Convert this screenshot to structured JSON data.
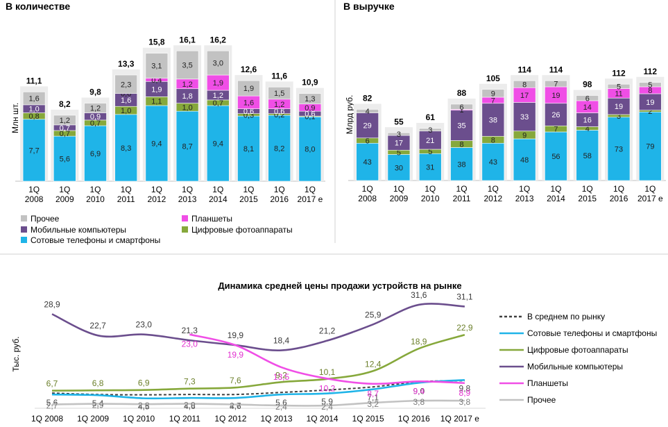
{
  "colors": {
    "phones": "#1fb4e8",
    "cameras": "#86a83b",
    "mobile_pc": "#6b4e8d",
    "tablets": "#f04ee6",
    "other": "#c2c2c2",
    "average": "#404040"
  },
  "legend": {
    "other": "Прочее",
    "tablets": "Планшеты",
    "mobile_pc": "Мобильные компьютеры",
    "cameras": "Цифровые фотоаппараты",
    "phones": "Сотовые телефоны и смартфоны"
  },
  "chart_data": [
    {
      "type": "bar",
      "title": "В количестве",
      "ylabel": "Млн шт.",
      "categories": [
        [
          "1Q",
          "2008"
        ],
        [
          "1Q",
          "2009"
        ],
        [
          "1Q",
          "2010"
        ],
        [
          "1Q",
          "2011"
        ],
        [
          "1Q",
          "2012"
        ],
        [
          "1Q",
          "2013"
        ],
        [
          "1Q",
          "2014"
        ],
        [
          "1Q",
          "2015"
        ],
        [
          "1Q",
          "2016"
        ],
        [
          "1Q",
          "2017 е"
        ]
      ],
      "totals": [
        "11,1",
        "8,2",
        "9,8",
        "13,3",
        "15,8",
        "16,1",
        "16,2",
        "12,6",
        "11,6",
        "10,9"
      ],
      "series": [
        {
          "key": "phones",
          "name": "Сотовые телефоны и смартфоны",
          "values": [
            7.7,
            5.6,
            6.9,
            8.3,
            9.4,
            8.7,
            9.4,
            8.1,
            8.2,
            8.0
          ],
          "labels": [
            "7,7",
            "5,6",
            "6,9",
            "8,3",
            "9,4",
            "8,7",
            "9,4",
            "8,1",
            "8,2",
            "8,0"
          ]
        },
        {
          "key": "cameras",
          "name": "Цифровые фотоаппараты",
          "values": [
            0.8,
            0.7,
            0.7,
            1.0,
            1.1,
            1.0,
            0.7,
            0.3,
            0.2,
            0.1
          ],
          "labels": [
            "0,8",
            "0,7",
            "0,7",
            "1,0",
            "1,1",
            "1,0",
            "0,7",
            "0,3",
            "0,2",
            "0,1"
          ]
        },
        {
          "key": "mobile_pc",
          "name": "Мобильные компьютеры",
          "values": [
            1.0,
            0.7,
            0.9,
            1.6,
            1.9,
            1.8,
            1.2,
            0.6,
            0.6,
            0.6
          ],
          "labels": [
            "1,0",
            "0,7",
            "0,9",
            "1,6",
            "1,9",
            "1,8",
            "1,2",
            "0,6",
            "0,6",
            "0,6"
          ]
        },
        {
          "key": "tablets",
          "name": "Планшеты",
          "values": [
            0,
            0,
            0,
            0.0,
            0.4,
            1.2,
            1.9,
            1.6,
            1.2,
            0.9
          ],
          "labels": [
            "",
            "",
            "",
            "0,0",
            "0,4",
            "1,2",
            "1,9",
            "1,6",
            "1,2",
            "0,9"
          ]
        },
        {
          "key": "other",
          "name": "Прочее",
          "values": [
            1.6,
            1.2,
            1.2,
            2.3,
            3.1,
            3.5,
            3.0,
            1.9,
            1.5,
            1.3
          ],
          "labels": [
            "1,6",
            "1,2",
            "1,2",
            "2,3",
            "3,1",
            "3,5",
            "3,0",
            "1,9",
            "1,5",
            "1,3"
          ]
        }
      ],
      "ylim": [
        0,
        17
      ]
    },
    {
      "type": "bar",
      "title": "В выручке",
      "ylabel": "Млрд руб.",
      "categories": [
        [
          "1Q",
          "2008"
        ],
        [
          "1Q",
          "2009"
        ],
        [
          "1Q",
          "2010"
        ],
        [
          "1Q",
          "2011"
        ],
        [
          "1Q",
          "2012"
        ],
        [
          "1Q",
          "2013"
        ],
        [
          "1Q",
          "2014"
        ],
        [
          "1Q",
          "2015"
        ],
        [
          "1Q",
          "2016"
        ],
        [
          "1Q",
          "2017 е"
        ]
      ],
      "totals": [
        "82",
        "55",
        "61",
        "88",
        "105",
        "114",
        "114",
        "98",
        "112",
        "112"
      ],
      "series": [
        {
          "key": "phones",
          "name": "Сотовые телефоны и смартфоны",
          "values": [
            43,
            30,
            31,
            38,
            43,
            48,
            56,
            58,
            73,
            79
          ],
          "labels": [
            "43",
            "30",
            "31",
            "38",
            "43",
            "48",
            "56",
            "58",
            "73",
            "79"
          ]
        },
        {
          "key": "cameras",
          "name": "Цифровые фотоаппараты",
          "values": [
            6,
            5,
            5,
            8,
            8,
            9,
            7,
            4,
            3,
            2
          ],
          "labels": [
            "6",
            "5",
            "5",
            "8",
            "8",
            "9",
            "7",
            "4",
            "3",
            "2"
          ]
        },
        {
          "key": "mobile_pc",
          "name": "Мобильные компьютеры",
          "values": [
            29,
            17,
            21,
            35,
            38,
            33,
            26,
            16,
            19,
            19
          ],
          "labels": [
            "29",
            "17",
            "21",
            "35",
            "38",
            "33",
            "26",
            "16",
            "19",
            "19"
          ]
        },
        {
          "key": "tablets",
          "name": "Планшеты",
          "values": [
            0,
            0,
            0,
            1,
            7,
            17,
            19,
            14,
            11,
            8
          ],
          "labels": [
            "",
            "",
            "",
            "1",
            "7",
            "17",
            "19",
            "14",
            "11",
            "8"
          ]
        },
        {
          "key": "other",
          "name": "Прочее",
          "values": [
            4,
            3,
            3,
            6,
            9,
            8,
            7,
            6,
            5,
            5
          ],
          "labels": [
            "4",
            "3",
            "3",
            "6",
            "9",
            "8",
            "7",
            "6",
            "5",
            "5"
          ]
        }
      ],
      "ylim": [
        0,
        120
      ]
    },
    {
      "type": "line",
      "title": "Динамика средней цены продажи устройств на рынке",
      "ylabel": "Тыс. руб.",
      "categories": [
        "1Q 2008",
        "1Q 2009",
        "1Q 2010",
        "1Q 2011",
        "1Q 2012",
        "1Q 2013",
        "1Q 2014",
        "1Q 2015",
        "1Q 2016",
        "1Q 2017 е"
      ],
      "ylim": [
        0,
        33
      ],
      "series": [
        {
          "key": "average",
          "name": "В среднем по рынку",
          "dashed": true,
          "values": [
            null,
            null,
            null,
            null,
            null,
            null,
            null,
            null,
            null,
            null
          ],
          "labels": []
        },
        {
          "key": "phones",
          "name": "Сотовые телефоны и смартфоны",
          "values": [
            5.6,
            5.4,
            4.5,
            4.6,
            4.6,
            5.6,
            5.9,
            7.1,
            9.0,
            9.8
          ],
          "labels": [
            "5,6",
            "5,4",
            "4,5",
            "4,6",
            "4,6",
            "5,6",
            "5,9",
            "7,1",
            "9,0",
            "9,8"
          ]
        },
        {
          "key": "cameras",
          "name": "Цифровые фотоаппараты",
          "values": [
            6.7,
            6.8,
            6.9,
            7.3,
            7.6,
            9.2,
            10.1,
            12.4,
            18.9,
            22.9
          ],
          "labels": [
            "6,7",
            "6,8",
            "6,9",
            "7,3",
            "7,6",
            "9,2",
            "10,1",
            "12,4",
            "18,9",
            "22,9"
          ]
        },
        {
          "key": "mobile_pc",
          "name": "Мобильные компьютеры",
          "values": [
            28.9,
            22.7,
            23.0,
            21.3,
            19.9,
            18.4,
            21.2,
            25.9,
            31.6,
            31.1
          ],
          "labels": [
            "28,9",
            "22,7",
            "23,0",
            "21,3",
            "19,9",
            "18,4",
            "21,2",
            "25,9",
            "31,6",
            "31,1"
          ]
        },
        {
          "key": "tablets",
          "name": "Планшеты",
          "values": [
            null,
            null,
            null,
            23.0,
            19.9,
            13.5,
            10.2,
            8.7,
            9.4,
            8.9
          ],
          "labels": [
            "",
            "",
            "",
            "23,0",
            "19,9",
            "13,5",
            "10,2",
            "8,7",
            "9,4",
            "8,9"
          ]
        },
        {
          "key": "other",
          "name": "Прочее",
          "values": [
            2.7,
            2.9,
            2.8,
            2.9,
            2.7,
            2.4,
            2.4,
            3.2,
            3.8,
            3.8
          ],
          "labels": [
            "2,7",
            "2,9",
            "2,8",
            "2,9",
            "2,7",
            "2,4",
            "2,4",
            "3,2",
            "3,8",
            "3,8"
          ]
        }
      ],
      "average_values": [
        6.0,
        5.6,
        5.5,
        5.6,
        5.6,
        6.2,
        6.9,
        7.8,
        9.3,
        9.6
      ]
    }
  ]
}
